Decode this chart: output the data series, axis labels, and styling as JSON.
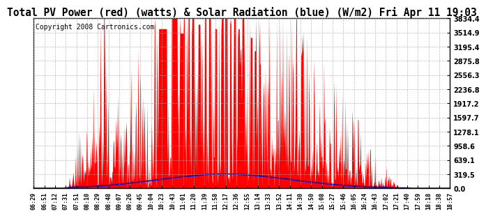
{
  "title": "Total PV Power (red) (watts) & Solar Radiation (blue) (W/m2) Fri Apr 11 19:03",
  "copyright": "Copyright 2008 Cartronics.com",
  "yticks": [
    0.0,
    319.5,
    639.1,
    958.6,
    1278.1,
    1597.7,
    1917.2,
    2236.8,
    2556.3,
    2875.8,
    3195.4,
    3514.9,
    3834.4
  ],
  "xtick_labels": [
    "06:29",
    "06:51",
    "07:12",
    "07:31",
    "07:51",
    "08:10",
    "08:29",
    "08:48",
    "09:07",
    "09:26",
    "09:45",
    "10:04",
    "10:23",
    "10:43",
    "11:01",
    "11:20",
    "11:39",
    "11:58",
    "12:17",
    "12:36",
    "12:55",
    "13:14",
    "13:33",
    "13:52",
    "14:11",
    "14:30",
    "14:50",
    "15:08",
    "15:27",
    "15:46",
    "16:05",
    "16:24",
    "16:43",
    "17:02",
    "17:21",
    "17:40",
    "17:59",
    "18:18",
    "18:38",
    "18:57"
  ],
  "ymax": 3834.4,
  "ymin": 0.0,
  "bg_color": "#ffffff",
  "plot_bg_color": "#ffffff",
  "grid_color": "#aaaaaa",
  "red_color": "#ff0000",
  "blue_color": "#0000cc",
  "title_fontsize": 10.5,
  "copyright_fontsize": 7
}
